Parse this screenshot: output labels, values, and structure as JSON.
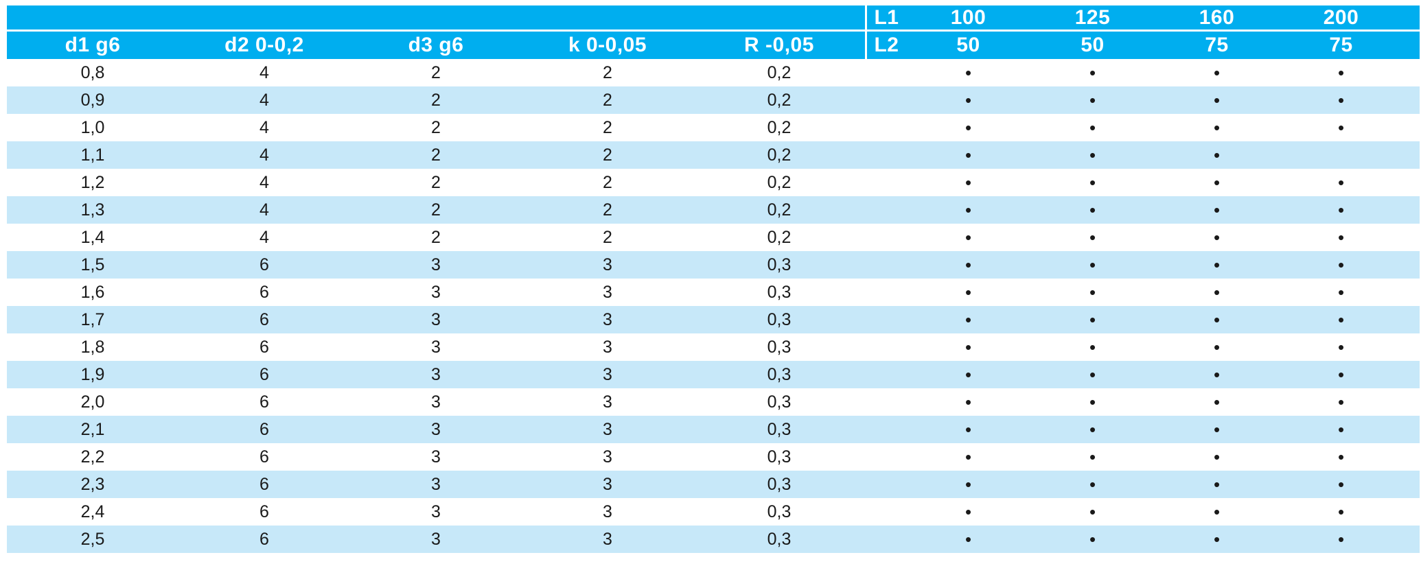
{
  "header": {
    "columns": [
      "d1 g6",
      "d2 0-0,2",
      "d3 g6",
      "k 0-0,05",
      "R -0,05"
    ],
    "l1_label": "L1",
    "l1_values": [
      "100",
      "125",
      "160",
      "200"
    ],
    "l2_label": "L2",
    "l2_values": [
      "50",
      "50",
      "75",
      "75"
    ]
  },
  "rows": [
    {
      "d1": "0,8",
      "d2": "4",
      "d3": "2",
      "k": "2",
      "r": "0,2",
      "marks": [
        "•",
        "•",
        "•",
        "•"
      ]
    },
    {
      "d1": "0,9",
      "d2": "4",
      "d3": "2",
      "k": "2",
      "r": "0,2",
      "marks": [
        "•",
        "•",
        "•",
        "•"
      ]
    },
    {
      "d1": "1,0",
      "d2": "4",
      "d3": "2",
      "k": "2",
      "r": "0,2",
      "marks": [
        "•",
        "•",
        "•",
        "•"
      ]
    },
    {
      "d1": "1,1",
      "d2": "4",
      "d3": "2",
      "k": "2",
      "r": "0,2",
      "marks": [
        "•",
        "•",
        "•",
        ""
      ]
    },
    {
      "d1": "1,2",
      "d2": "4",
      "d3": "2",
      "k": "2",
      "r": "0,2",
      "marks": [
        "•",
        "•",
        "•",
        "•"
      ]
    },
    {
      "d1": "1,3",
      "d2": "4",
      "d3": "2",
      "k": "2",
      "r": "0,2",
      "marks": [
        "•",
        "•",
        "•",
        "•"
      ]
    },
    {
      "d1": "1,4",
      "d2": "4",
      "d3": "2",
      "k": "2",
      "r": "0,2",
      "marks": [
        "•",
        "•",
        "•",
        "•"
      ]
    },
    {
      "d1": "1,5",
      "d2": "6",
      "d3": "3",
      "k": "3",
      "r": "0,3",
      "marks": [
        "•",
        "•",
        "•",
        "•"
      ]
    },
    {
      "d1": "1,6",
      "d2": "6",
      "d3": "3",
      "k": "3",
      "r": "0,3",
      "marks": [
        "•",
        "•",
        "•",
        "•"
      ]
    },
    {
      "d1": "1,7",
      "d2": "6",
      "d3": "3",
      "k": "3",
      "r": "0,3",
      "marks": [
        "•",
        "•",
        "•",
        "•"
      ]
    },
    {
      "d1": "1,8",
      "d2": "6",
      "d3": "3",
      "k": "3",
      "r": "0,3",
      "marks": [
        "•",
        "•",
        "•",
        "•"
      ]
    },
    {
      "d1": "1,9",
      "d2": "6",
      "d3": "3",
      "k": "3",
      "r": "0,3",
      "marks": [
        "•",
        "•",
        "•",
        "•"
      ]
    },
    {
      "d1": "2,0",
      "d2": "6",
      "d3": "3",
      "k": "3",
      "r": "0,3",
      "marks": [
        "•",
        "•",
        "•",
        "•"
      ]
    },
    {
      "d1": "2,1",
      "d2": "6",
      "d3": "3",
      "k": "3",
      "r": "0,3",
      "marks": [
        "•",
        "•",
        "•",
        "•"
      ]
    },
    {
      "d1": "2,2",
      "d2": "6",
      "d3": "3",
      "k": "3",
      "r": "0,3",
      "marks": [
        "•",
        "•",
        "•",
        "•"
      ]
    },
    {
      "d1": "2,3",
      "d2": "6",
      "d3": "3",
      "k": "3",
      "r": "0,3",
      "marks": [
        "•",
        "•",
        "•",
        "•"
      ]
    },
    {
      "d1": "2,4",
      "d2": "6",
      "d3": "3",
      "k": "3",
      "r": "0,3",
      "marks": [
        "•",
        "•",
        "•",
        "•"
      ]
    },
    {
      "d1": "2,5",
      "d2": "6",
      "d3": "3",
      "k": "3",
      "r": "0,3",
      "marks": [
        "•",
        "•",
        "•",
        "•"
      ]
    }
  ],
  "colors": {
    "header_bg": "#00aeef",
    "stripe_bg": "#c7e8f9",
    "text": "#1a1a1a"
  }
}
